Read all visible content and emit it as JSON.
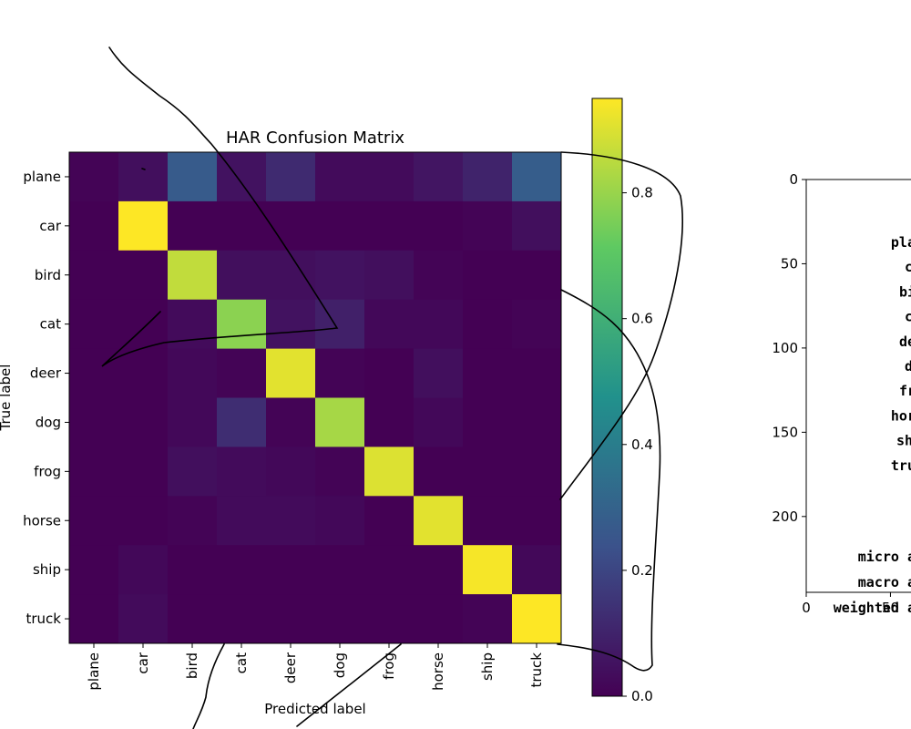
{
  "chart_data": [
    {
      "type": "heatmap",
      "title": "HAR Confusion Matrix",
      "xlabel": "Predicted label",
      "ylabel": "True label",
      "categories": [
        "plane",
        "car",
        "bird",
        "cat",
        "deer",
        "dog",
        "frog",
        "horse",
        "ship",
        "truck"
      ],
      "matrix": [
        [
          0.01,
          0.04,
          0.27,
          0.05,
          0.12,
          0.03,
          0.03,
          0.06,
          0.1,
          0.28
        ],
        [
          0.0,
          0.95,
          0.0,
          0.0,
          0.0,
          0.0,
          0.0,
          0.0,
          0.01,
          0.04
        ],
        [
          0.0,
          0.0,
          0.86,
          0.04,
          0.04,
          0.05,
          0.04,
          0.01,
          0.0,
          0.0
        ],
        [
          0.0,
          0.0,
          0.03,
          0.78,
          0.05,
          0.09,
          0.02,
          0.02,
          0.0,
          0.01
        ],
        [
          0.0,
          0.0,
          0.02,
          0.01,
          0.91,
          0.01,
          0.0,
          0.04,
          0.0,
          0.0
        ],
        [
          0.0,
          0.0,
          0.02,
          0.13,
          0.01,
          0.82,
          0.0,
          0.02,
          0.0,
          0.0
        ],
        [
          0.0,
          0.0,
          0.04,
          0.03,
          0.02,
          0.01,
          0.9,
          0.0,
          0.0,
          0.0
        ],
        [
          0.0,
          0.0,
          0.01,
          0.03,
          0.03,
          0.02,
          0.0,
          0.91,
          0.0,
          0.0
        ],
        [
          0.0,
          0.02,
          0.0,
          0.0,
          0.0,
          0.0,
          0.0,
          0.0,
          0.94,
          0.02
        ],
        [
          0.0,
          0.03,
          0.0,
          0.0,
          0.0,
          0.0,
          0.0,
          0.0,
          0.01,
          0.95
        ]
      ],
      "colormap": "viridis",
      "colorbar": {
        "range": [
          0.0,
          0.95
        ],
        "ticks": [
          "0.0",
          "0.2",
          "0.4",
          "0.6",
          "0.8"
        ]
      }
    },
    {
      "type": "table",
      "yticks": [
        "0",
        "50",
        "100",
        "150",
        "200"
      ],
      "xticks": [
        "0",
        "50"
      ],
      "yrange": [
        0,
        245
      ],
      "rows": [
        "pla",
        "c",
        "bi",
        "c",
        "de",
        "d",
        "fr",
        "hor",
        "sh",
        "tru"
      ],
      "footer_rows": [
        "micro a",
        "macro a",
        "weighted a"
      ]
    }
  ]
}
